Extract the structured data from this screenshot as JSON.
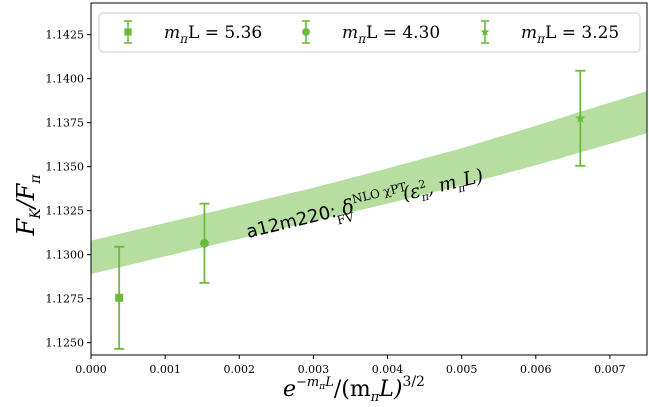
{
  "chart_data": {
    "type": "scatter",
    "title": "",
    "xlabel": "e^{−m_πL}/(m_πL)^{3/2}",
    "ylabel": "F_K/F_π",
    "xlim": [
      0.0,
      0.0075
    ],
    "ylim": [
      1.1243,
      1.1443
    ],
    "x_ticks": [
      0.0,
      0.001,
      0.002,
      0.003,
      0.004,
      0.005,
      0.006,
      0.007
    ],
    "x_tick_labels": [
      "0.000",
      "0.001",
      "0.002",
      "0.003",
      "0.004",
      "0.005",
      "0.006",
      "0.007"
    ],
    "y_ticks": [
      1.125,
      1.1275,
      1.13,
      1.1325,
      1.135,
      1.1375,
      1.14,
      1.1425
    ],
    "y_tick_labels": [
      "1.1250",
      "1.1275",
      "1.1300",
      "1.1325",
      "1.1350",
      "1.1375",
      "1.1400",
      "1.1425"
    ],
    "grid": false,
    "legend_position": "top",
    "color": "#6cbb3c",
    "band_color": "#b5dea0",
    "series": [
      {
        "name": "m_πL = 5.36",
        "marker": "square",
        "x": 0.00038,
        "y": 1.12755,
        "yerr": 0.0029
      },
      {
        "name": "m_πL = 4.30",
        "marker": "circle",
        "x": 0.00153,
        "y": 1.13065,
        "yerr": 0.00225
      },
      {
        "name": "m_πL = 3.25",
        "marker": "star",
        "x": 0.0066,
        "y": 1.13775,
        "yerr": 0.0027
      }
    ],
    "legend": [
      {
        "marker": "square",
        "prefix": "m",
        "sub": "π",
        "suffix": "L = 5.36"
      },
      {
        "marker": "circle",
        "prefix": "m",
        "sub": "π",
        "suffix": "L = 4.30"
      },
      {
        "marker": "star",
        "prefix": "m",
        "sub": "π",
        "suffix": "L = 3.25"
      }
    ],
    "band": {
      "x": [
        0.0,
        0.001,
        0.002,
        0.003,
        0.004,
        0.005,
        0.006,
        0.0075
      ],
      "center": [
        1.12985,
        1.13085,
        1.13185,
        1.13285,
        1.1339,
        1.135,
        1.1362,
        1.1381
      ],
      "half_width": [
        0.00095,
        0.00095,
        0.00095,
        0.00095,
        0.001,
        0.00105,
        0.00112,
        0.0012
      ]
    },
    "annotation": {
      "prefix": "a12m220:",
      "delta": "δ",
      "sup": "NLO  χPT",
      "sub": "FV",
      "args": "(ε",
      "args_sup": "2",
      "args_sub": "π",
      "args_tail": ", m",
      "args_sub2": "π",
      "args_end": "L)"
    },
    "ylabel_parts": {
      "main": "F",
      "sub1": "K",
      "slash": "/F",
      "sub2": "π"
    },
    "xlabel_parts": {
      "base": "e",
      "exp": "−m",
      "exp_sub": "π",
      "exp_tail": "L",
      "mid": "/(m",
      "mid_sub": "π",
      "tail": "L)",
      "pow": "3/2"
    }
  }
}
